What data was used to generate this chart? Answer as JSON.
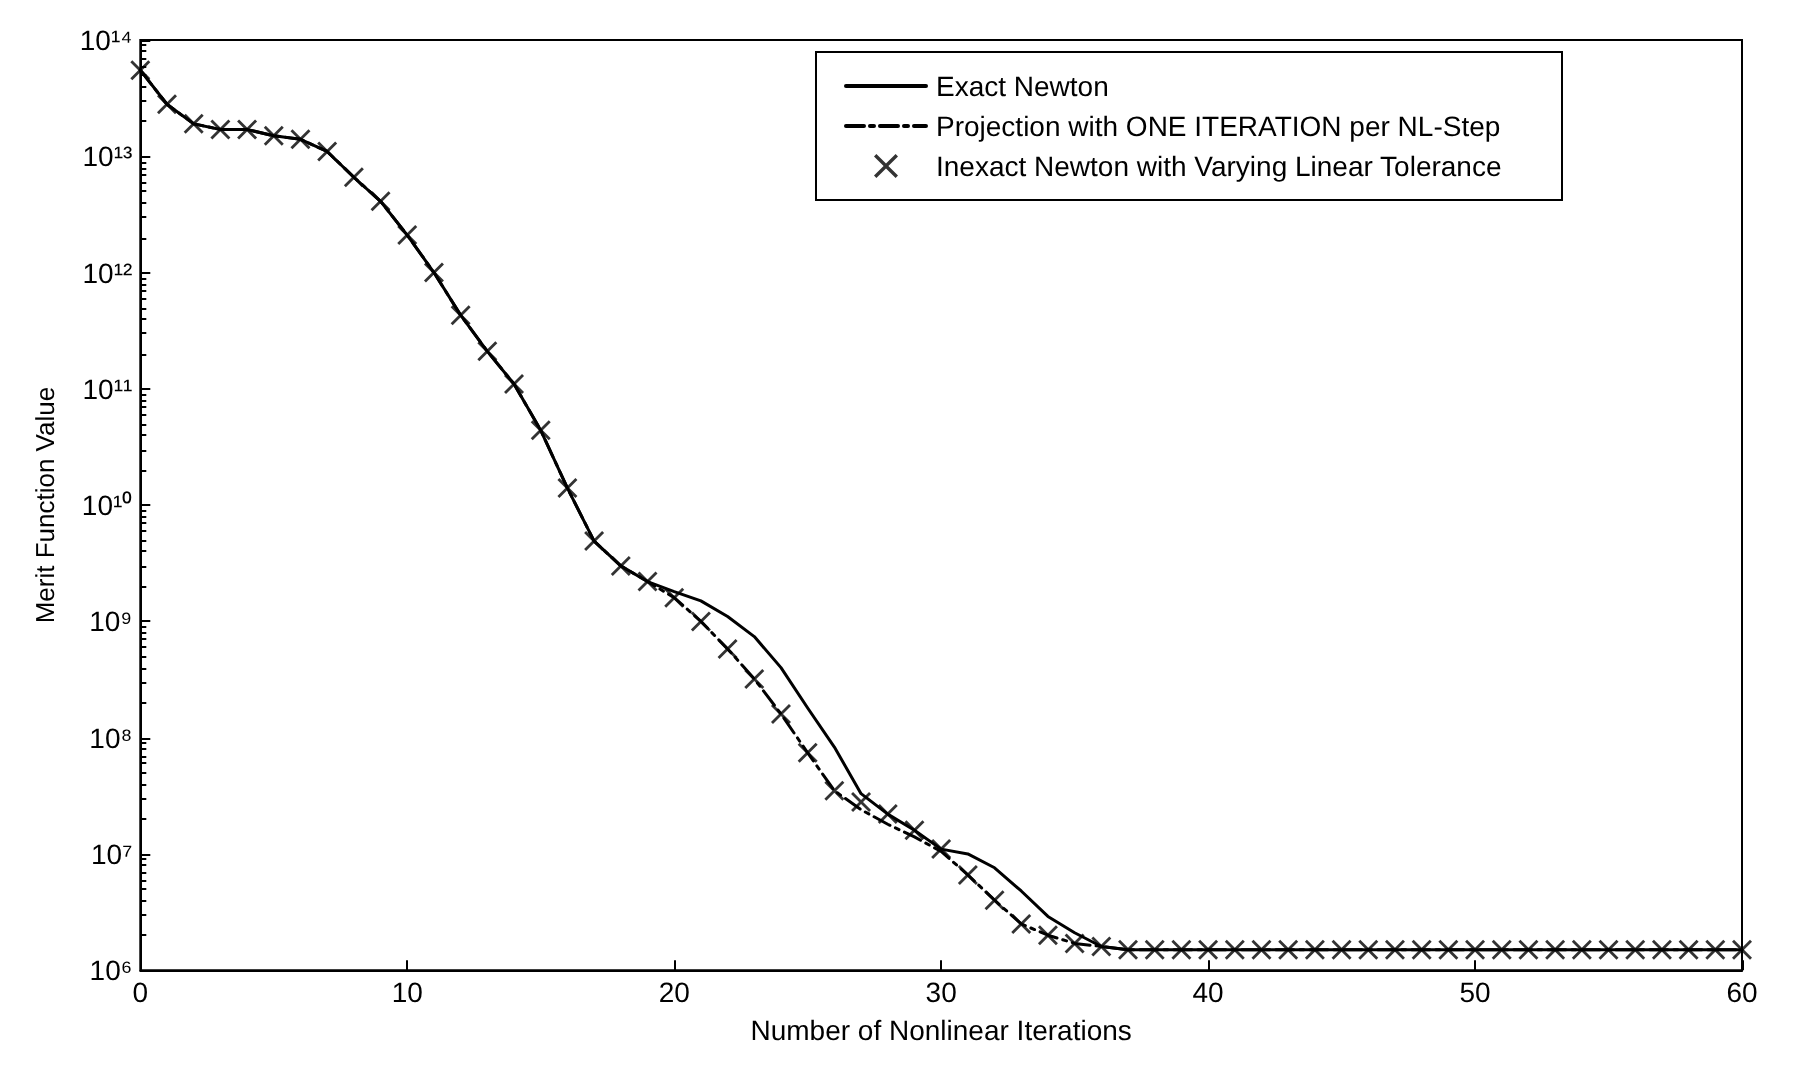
{
  "chart_data": {
    "type": "line",
    "xlabel": "Number of Nonlinear Iterations",
    "ylabel": "Merit Function Value",
    "x": [
      0,
      1,
      2,
      3,
      4,
      5,
      6,
      7,
      8,
      9,
      10,
      11,
      12,
      13,
      14,
      15,
      16,
      17,
      18,
      19,
      20,
      21,
      22,
      23,
      24,
      25,
      26,
      27,
      28,
      29,
      30,
      31,
      32,
      33,
      34,
      35,
      36,
      37,
      38,
      39,
      40,
      41,
      42,
      43,
      44,
      45,
      46,
      47,
      48,
      49,
      50,
      51,
      52,
      53,
      54,
      55,
      56,
      57,
      58,
      59,
      60
    ],
    "series": [
      {
        "name": "Exact Newton",
        "line_style": "solid",
        "marker": "none",
        "color": "#000000",
        "values": [
          55000000000000.0,
          28000000000000.0,
          19000000000000.0,
          17000000000000.0,
          17000000000000.0,
          15000000000000.0,
          14000000000000.0,
          11000000000000.0,
          6600000000000.0,
          4100000000000.0,
          2100000000000.0,
          1000000000000.0,
          430000000000.0,
          210000000000.0,
          110000000000.0,
          44000000000.0,
          14000000000.0,
          4900000000.0,
          3000000000.0,
          2200000000.0,
          1800000000.0,
          1500000000.0,
          1100000000.0,
          740000000.0,
          400000000.0,
          180000000.0,
          83000000.0,
          33000000.0,
          22000000.0,
          16000000.0,
          11000000.0,
          10000000.0,
          7600000.0,
          4800000.0,
          2900000.0,
          2100000.0,
          1600000.0,
          1500000.0,
          1500000.0,
          1500000.0,
          1500000.0,
          1500000.0,
          1500000.0,
          1500000.0,
          1500000.0,
          1500000.0,
          1500000.0,
          1500000.0,
          1500000.0,
          1500000.0,
          1500000.0,
          1500000.0,
          1500000.0,
          1500000.0,
          1500000.0,
          1500000.0,
          1500000.0,
          1500000.0,
          1500000.0,
          1500000.0,
          1500000.0
        ]
      },
      {
        "name": "Projection with ONE ITERATION per NL-Step",
        "line_style": "dashed",
        "marker": "none",
        "color": "#000000",
        "values": [
          55000000000000.0,
          28000000000000.0,
          19000000000000.0,
          17000000000000.0,
          17000000000000.0,
          15000000000000.0,
          14000000000000.0,
          11000000000000.0,
          6600000000000.0,
          4100000000000.0,
          2100000000000.0,
          1000000000000.0,
          430000000000.0,
          210000000000.0,
          110000000000.0,
          44000000000.0,
          14000000000.0,
          4900000000.0,
          3000000000.0,
          2200000000.0,
          1600000000.0,
          1000000000.0,
          580000000.0,
          320000000.0,
          160000000.0,
          74000000.0,
          35000000.0,
          24000000.0,
          18000000.0,
          14000000.0,
          10500000.0,
          6600000.0,
          4000000.0,
          2500000.0,
          2000000.0,
          1700000.0,
          1600000.0,
          1500000.0,
          1500000.0,
          1500000.0,
          1500000.0,
          1500000.0,
          1500000.0,
          1500000.0,
          1500000.0,
          1500000.0,
          1500000.0,
          1500000.0,
          1500000.0,
          1500000.0,
          1500000.0,
          1500000.0,
          1500000.0,
          1500000.0,
          1500000.0,
          1500000.0,
          1500000.0,
          1500000.0,
          1500000.0,
          1500000.0,
          1500000.0
        ]
      },
      {
        "name": "Inexact Newton with Varying Linear Tolerance",
        "type": "scatter",
        "marker": "cross",
        "color": "#000000",
        "values": [
          55000000000000.0,
          28000000000000.0,
          19000000000000.0,
          17000000000000.0,
          17000000000000.0,
          15000000000000.0,
          14000000000000.0,
          11000000000000.0,
          6600000000000.0,
          4100000000000.0,
          2100000000000.0,
          1000000000000.0,
          430000000000.0,
          210000000000.0,
          110000000000.0,
          44000000000.0,
          14000000000.0,
          4900000000.0,
          3000000000.0,
          2200000000.0,
          1600000000.0,
          1000000000.0,
          580000000.0,
          320000000.0,
          160000000.0,
          74000000.0,
          35000000.0,
          28000000.0,
          22000000.0,
          16000000.0,
          11000000.0,
          6600000.0,
          4000000.0,
          2500000.0,
          2000000.0,
          1700000.0,
          1600000.0,
          1500000.0,
          1500000.0,
          1500000.0,
          1500000.0,
          1500000.0,
          1500000.0,
          1500000.0,
          1500000.0,
          1500000.0,
          1500000.0,
          1500000.0,
          1500000.0,
          1500000.0,
          1500000.0,
          1500000.0,
          1500000.0,
          1500000.0,
          1500000.0,
          1500000.0,
          1500000.0,
          1500000.0,
          1500000.0,
          1500000.0,
          1500000.0
        ]
      }
    ],
    "xlim": [
      0,
      60
    ],
    "xticks": [
      0,
      10,
      20,
      30,
      40,
      50,
      60
    ],
    "ylim": [
      1000000.0,
      100000000000000.0
    ],
    "yticks": [
      {
        "value": 1000000.0,
        "label": "10⁶"
      },
      {
        "value": 10000000.0,
        "label": "10⁷"
      },
      {
        "value": 100000000.0,
        "label": "10⁸"
      },
      {
        "value": 1000000000.0,
        "label": "10⁹"
      },
      {
        "value": 10000000000.0,
        "label": "10¹⁰"
      },
      {
        "value": 100000000000.0,
        "label": "10¹¹"
      },
      {
        "value": 1000000000000.0,
        "label": "10¹²"
      },
      {
        "value": 10000000000000.0,
        "label": "10¹³"
      },
      {
        "value": 100000000000000.0,
        "label": "10¹⁴"
      }
    ],
    "log": "y",
    "grid": false,
    "legend": "top right"
  }
}
